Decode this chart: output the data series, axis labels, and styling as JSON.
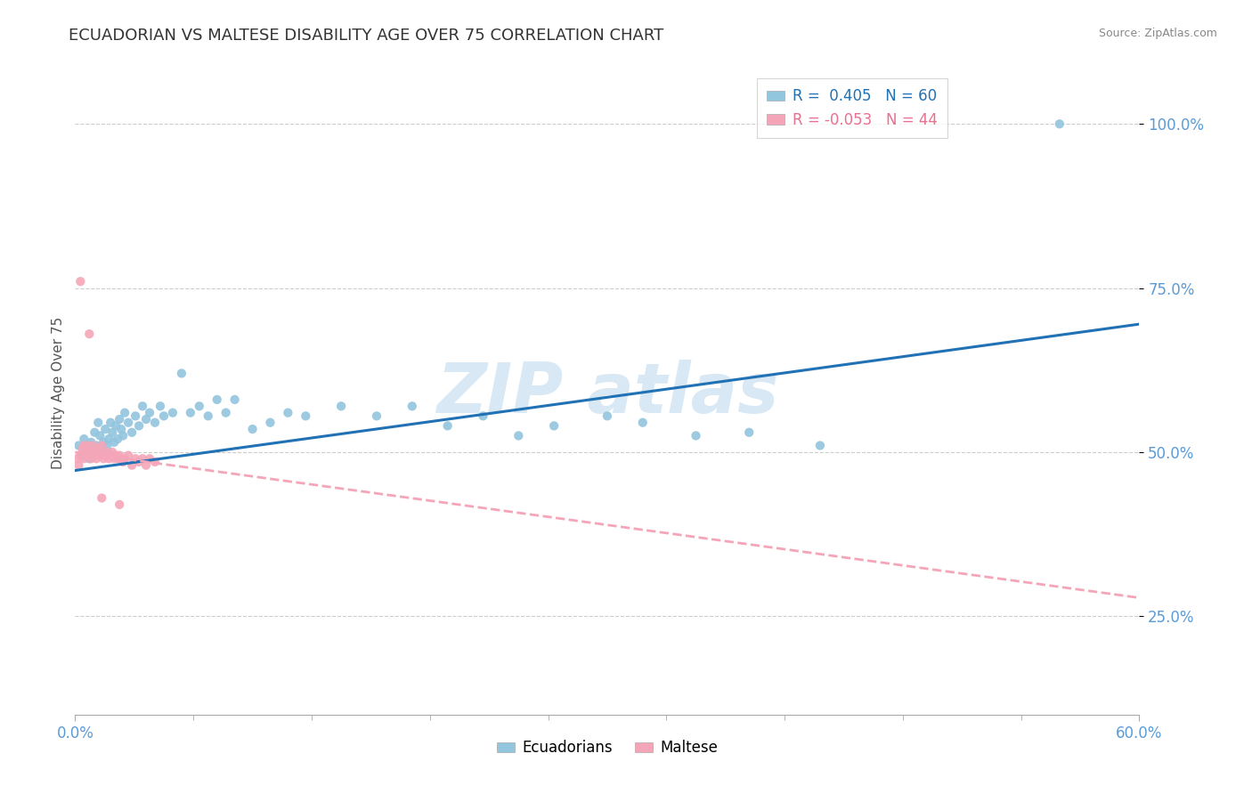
{
  "title": "ECUADORIAN VS MALTESE DISABILITY AGE OVER 75 CORRELATION CHART",
  "source": "Source: ZipAtlas.com",
  "ylabel": "Disability Age Over 75",
  "xlim": [
    0.0,
    0.6
  ],
  "ylim": [
    0.1,
    1.08
  ],
  "yticks": [
    0.25,
    0.5,
    0.75,
    1.0
  ],
  "ytick_labels": [
    "25.0%",
    "50.0%",
    "75.0%",
    "100.0%"
  ],
  "legend_R_blue": "R =  0.405",
  "legend_N_blue": "N = 60",
  "legend_R_pink": "R = -0.053",
  "legend_N_pink": "N = 44",
  "blue_scatter_color": "#92c5de",
  "pink_scatter_color": "#f4a6b8",
  "blue_line_color": "#2171b5",
  "pink_line_color": "#f4a6b8",
  "grid_color": "#cccccc",
  "background_color": "#ffffff",
  "title_color": "#333333",
  "axis_color": "#5b9bd5",
  "watermark_color": "#c8dff0",
  "ecuadorians_x": [
    0.002,
    0.004,
    0.005,
    0.007,
    0.008,
    0.009,
    0.01,
    0.011,
    0.012,
    0.013,
    0.014,
    0.015,
    0.016,
    0.017,
    0.018,
    0.019,
    0.02,
    0.021,
    0.022,
    0.023,
    0.024,
    0.025,
    0.026,
    0.027,
    0.028,
    0.03,
    0.032,
    0.034,
    0.036,
    0.038,
    0.04,
    0.042,
    0.045,
    0.048,
    0.05,
    0.055,
    0.06,
    0.065,
    0.07,
    0.075,
    0.08,
    0.085,
    0.09,
    0.1,
    0.11,
    0.12,
    0.13,
    0.15,
    0.17,
    0.19,
    0.21,
    0.23,
    0.25,
    0.27,
    0.3,
    0.32,
    0.35,
    0.38,
    0.42,
    0.555
  ],
  "ecuadorians_y": [
    0.51,
    0.495,
    0.52,
    0.505,
    0.49,
    0.515,
    0.5,
    0.53,
    0.51,
    0.545,
    0.525,
    0.5,
    0.515,
    0.535,
    0.51,
    0.52,
    0.545,
    0.53,
    0.515,
    0.54,
    0.52,
    0.55,
    0.535,
    0.525,
    0.56,
    0.545,
    0.53,
    0.555,
    0.54,
    0.57,
    0.55,
    0.56,
    0.545,
    0.57,
    0.555,
    0.56,
    0.62,
    0.56,
    0.57,
    0.555,
    0.58,
    0.56,
    0.58,
    0.535,
    0.545,
    0.56,
    0.555,
    0.57,
    0.555,
    0.57,
    0.54,
    0.555,
    0.525,
    0.54,
    0.555,
    0.545,
    0.525,
    0.53,
    0.51,
    1.0
  ],
  "maltese_x": [
    0.001,
    0.002,
    0.003,
    0.004,
    0.005,
    0.005,
    0.006,
    0.007,
    0.007,
    0.008,
    0.009,
    0.01,
    0.01,
    0.011,
    0.012,
    0.013,
    0.013,
    0.014,
    0.015,
    0.016,
    0.017,
    0.018,
    0.019,
    0.02,
    0.021,
    0.022,
    0.023,
    0.024,
    0.025,
    0.026,
    0.027,
    0.028,
    0.03,
    0.032,
    0.034,
    0.036,
    0.038,
    0.04,
    0.042,
    0.045,
    0.003,
    0.008,
    0.015,
    0.025
  ],
  "maltese_y": [
    0.49,
    0.48,
    0.495,
    0.505,
    0.51,
    0.49,
    0.5,
    0.495,
    0.51,
    0.505,
    0.49,
    0.5,
    0.51,
    0.495,
    0.49,
    0.505,
    0.5,
    0.495,
    0.51,
    0.49,
    0.495,
    0.5,
    0.49,
    0.495,
    0.5,
    0.49,
    0.495,
    0.49,
    0.495,
    0.49,
    0.485,
    0.49,
    0.495,
    0.48,
    0.49,
    0.485,
    0.49,
    0.48,
    0.49,
    0.485,
    0.76,
    0.68,
    0.43,
    0.42
  ],
  "blue_trend_x": [
    0.0,
    0.6
  ],
  "blue_trend_y": [
    0.472,
    0.695
  ],
  "pink_trend_x": [
    0.0,
    0.6
  ],
  "pink_trend_y": [
    0.5,
    0.278
  ]
}
